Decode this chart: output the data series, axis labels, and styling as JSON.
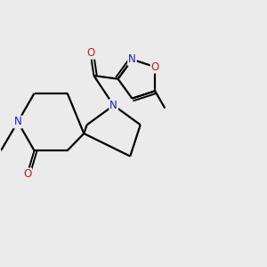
{
  "bg_color": "#ebebeb",
  "bond_color": "#000000",
  "N_color": "#1a1acc",
  "O_color": "#cc1a1a",
  "lw": 1.6,
  "lw_double": 1.4,
  "fs": 8.5,
  "figsize": [
    3.0,
    3.0
  ],
  "dpi": 100,
  "xlim": [
    -2.5,
    5.5
  ],
  "ylim": [
    -3.5,
    3.5
  ]
}
